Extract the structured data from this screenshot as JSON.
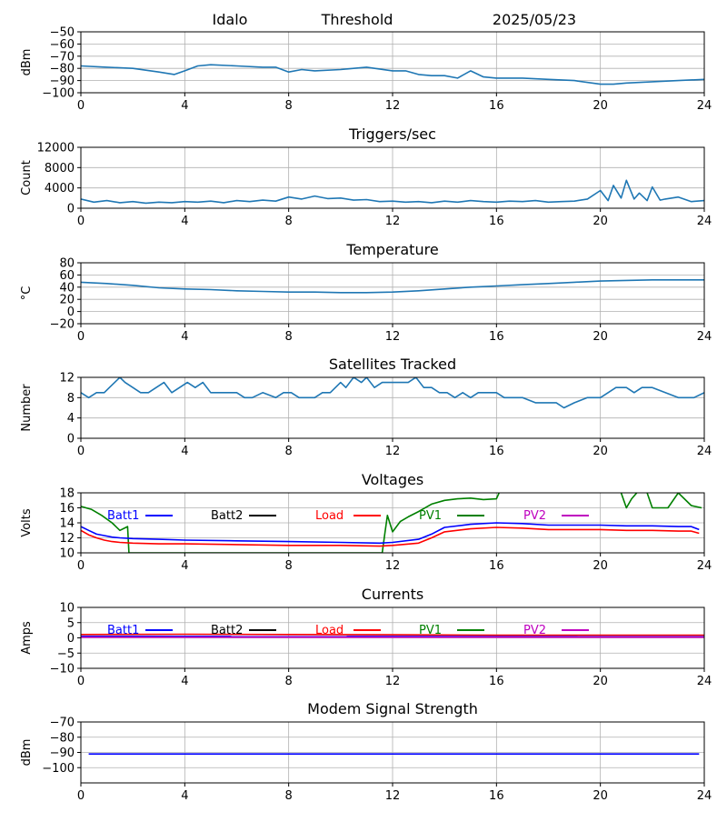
{
  "header": {
    "site": "Idalo",
    "type": "Threshold",
    "date": "2025/05/23"
  },
  "chart_data": [
    {
      "id": "threshold",
      "type": "line",
      "title": "",
      "ylabel": "dBm",
      "xlim": [
        0,
        24
      ],
      "ylim": [
        -100,
        -50
      ],
      "xticks": [
        0,
        4,
        8,
        12,
        16,
        20,
        24
      ],
      "yticks": [
        -100,
        -90,
        -80,
        -70,
        -60,
        -50
      ],
      "ytick_labels": [
        "−100",
        "−90",
        "−80",
        "−70",
        "−60",
        "−50"
      ],
      "grid": true,
      "series": [
        {
          "color": "#1f77b4",
          "x": [
            0,
            1,
            2,
            3,
            3.6,
            4,
            4.5,
            5,
            6,
            7,
            7.5,
            8,
            8.5,
            9,
            10,
            10.5,
            11,
            12,
            12.5,
            13,
            13.5,
            14,
            14.5,
            15,
            15.5,
            16,
            17,
            18,
            19,
            20,
            20.5,
            21,
            22,
            23,
            24
          ],
          "y": [
            -78,
            -79,
            -80,
            -83,
            -85,
            -82,
            -78,
            -77,
            -78,
            -79,
            -79,
            -83,
            -81,
            -82,
            -81,
            -80,
            -79,
            -82,
            -82,
            -85,
            -86,
            -86,
            -88,
            -82,
            -87,
            -88,
            -88,
            -89,
            -90,
            -93,
            -93,
            -92,
            -91,
            -90,
            -89
          ]
        }
      ]
    },
    {
      "id": "triggers",
      "type": "line",
      "title": "Triggers/sec",
      "ylabel": "Count",
      "xlim": [
        0,
        24
      ],
      "ylim": [
        0,
        12000
      ],
      "xticks": [
        0,
        4,
        8,
        12,
        16,
        20,
        24
      ],
      "yticks": [
        0,
        4000,
        8000,
        12000
      ],
      "ytick_labels": [
        "0",
        "4000",
        "8000",
        "12000"
      ],
      "grid": true,
      "series": [
        {
          "color": "#1f77b4",
          "x": [
            0,
            0.5,
            1,
            1.5,
            2,
            2.5,
            3,
            3.5,
            4,
            4.5,
            5,
            5.5,
            6,
            6.5,
            7,
            7.5,
            8,
            8.5,
            9,
            9.5,
            10,
            10.5,
            11,
            11.5,
            12,
            12.5,
            13,
            13.5,
            14,
            14.5,
            15,
            15.5,
            16,
            16.5,
            17,
            17.5,
            18,
            18.5,
            19,
            19.5,
            20,
            20.3,
            20.5,
            20.8,
            21,
            21.3,
            21.5,
            21.8,
            22,
            22.3,
            22.5,
            23,
            23.5,
            24
          ],
          "y": [
            1800,
            1200,
            1500,
            1100,
            1300,
            1000,
            1200,
            1100,
            1300,
            1200,
            1400,
            1100,
            1500,
            1300,
            1600,
            1400,
            2200,
            1800,
            2400,
            1900,
            2000,
            1600,
            1700,
            1300,
            1400,
            1200,
            1300,
            1100,
            1400,
            1200,
            1500,
            1300,
            1200,
            1400,
            1300,
            1500,
            1200,
            1300,
            1400,
            1800,
            3500,
            1500,
            4500,
            2000,
            5500,
            1800,
            3000,
            1500,
            4200,
            1600,
            1800,
            2200,
            1300,
            1500
          ]
        }
      ]
    },
    {
      "id": "temperature",
      "type": "line",
      "title": "Temperature",
      "ylabel": "°C",
      "xlim": [
        0,
        24
      ],
      "ylim": [
        -20,
        80
      ],
      "xticks": [
        0,
        4,
        8,
        12,
        16,
        20,
        24
      ],
      "yticks": [
        -20,
        0,
        20,
        40,
        60,
        80
      ],
      "ytick_labels": [
        "−20",
        "0",
        "20",
        "40",
        "60",
        "80"
      ],
      "grid": true,
      "series": [
        {
          "color": "#1f77b4",
          "x": [
            0,
            1,
            2,
            3,
            4,
            5,
            6,
            7,
            8,
            9,
            10,
            11,
            12,
            13,
            14,
            15,
            16,
            17,
            18,
            19,
            20,
            21,
            22,
            23,
            24
          ],
          "y": [
            48,
            46,
            43,
            39,
            37,
            36,
            34,
            33,
            32,
            32,
            31,
            31,
            32,
            34,
            37,
            40,
            42,
            44,
            46,
            48,
            50,
            51,
            52,
            52,
            52
          ]
        }
      ]
    },
    {
      "id": "satellites",
      "type": "line",
      "title": "Satellites Tracked",
      "ylabel": "Number",
      "xlim": [
        0,
        24
      ],
      "ylim": [
        0,
        12
      ],
      "xticks": [
        0,
        4,
        8,
        12,
        16,
        20,
        24
      ],
      "yticks": [
        0,
        4,
        8,
        12
      ],
      "ytick_labels": [
        "0",
        "4",
        "8",
        "12"
      ],
      "grid": true,
      "series": [
        {
          "color": "#1f77b4",
          "x": [
            0,
            0.3,
            0.6,
            0.9,
            1.1,
            1.3,
            1.5,
            1.7,
            2.0,
            2.3,
            2.6,
            2.9,
            3.2,
            3.5,
            3.8,
            4.1,
            4.4,
            4.7,
            5.0,
            5.5,
            6.0,
            6.3,
            6.6,
            7.0,
            7.5,
            7.8,
            8.1,
            8.4,
            8.7,
            9.0,
            9.3,
            9.6,
            10.0,
            10.2,
            10.5,
            10.8,
            11.0,
            11.3,
            11.6,
            12.0,
            12.3,
            12.6,
            12.9,
            13.2,
            13.5,
            13.8,
            14.1,
            14.4,
            14.7,
            15.0,
            15.3,
            15.6,
            16.0,
            16.3,
            16.6,
            17.0,
            17.5,
            18.0,
            18.3,
            18.6,
            19.0,
            19.5,
            20.0,
            20.3,
            20.6,
            21.0,
            21.3,
            21.6,
            22.0,
            22.5,
            23.0,
            23.3,
            23.6,
            24.0
          ],
          "y": [
            9,
            8,
            9,
            9,
            10,
            11,
            12,
            11,
            10,
            9,
            9,
            10,
            11,
            9,
            10,
            11,
            10,
            11,
            9,
            9,
            9,
            8,
            8,
            9,
            8,
            9,
            9,
            8,
            8,
            8,
            9,
            9,
            11,
            10,
            12,
            11,
            12,
            10,
            11,
            11,
            11,
            11,
            12,
            10,
            10,
            9,
            9,
            8,
            9,
            8,
            9,
            9,
            9,
            8,
            8,
            8,
            7,
            7,
            7,
            6,
            7,
            8,
            8,
            9,
            10,
            10,
            9,
            10,
            10,
            9,
            8,
            8,
            8,
            9
          ]
        }
      ]
    },
    {
      "id": "voltages",
      "type": "line",
      "title": "Voltages",
      "ylabel": "Volts",
      "xlim": [
        0,
        24
      ],
      "ylim": [
        10,
        18
      ],
      "xticks": [
        0,
        4,
        8,
        12,
        16,
        20,
        24
      ],
      "yticks": [
        10,
        12,
        14,
        16,
        18
      ],
      "ytick_labels": [
        "10",
        "12",
        "14",
        "16",
        "18"
      ],
      "grid": true,
      "legend": [
        "Batt1",
        "Batt2",
        "Load",
        "PV1",
        "PV2"
      ],
      "series": [
        {
          "name": "PV1",
          "color": "#008000",
          "x": [
            0,
            0.4,
            0.8,
            1.2,
            1.5,
            1.8,
            1.85,
            11.6,
            11.7,
            11.8,
            12.0,
            12.3,
            12.6,
            13.0,
            13.5,
            14.0,
            14.5,
            15.0,
            15.5,
            16.0,
            16.1
          ],
          "y": [
            16.2,
            15.8,
            15.0,
            14.0,
            13.0,
            13.5,
            10,
            10,
            12.5,
            15.0,
            12.8,
            14.2,
            14.8,
            15.5,
            16.5,
            17.0,
            17.2,
            17.3,
            17.1,
            17.2,
            18
          ]
        },
        {
          "name": "PV1",
          "color": "#008000",
          "x": [
            20.8,
            21.0,
            21.2,
            21.4
          ],
          "y": [
            18,
            16,
            17.2,
            18
          ]
        },
        {
          "name": "PV1",
          "color": "#008000",
          "x": [
            21.8,
            22.0,
            22.6,
            23.0,
            23.5,
            23.9
          ],
          "y": [
            18,
            16,
            16,
            18,
            16.3,
            16
          ]
        },
        {
          "name": "Batt1",
          "color": "#0000ff",
          "x": [
            0,
            0.3,
            0.6,
            0.9,
            1.2,
            1.5,
            2,
            3,
            4,
            6,
            8,
            10,
            11.5,
            12,
            13,
            13.5,
            14,
            15,
            16,
            17,
            18,
            19,
            20,
            21,
            22,
            23,
            23.5,
            23.8
          ],
          "y": [
            13.5,
            13.0,
            12.5,
            12.3,
            12.1,
            12.0,
            11.9,
            11.8,
            11.7,
            11.6,
            11.5,
            11.4,
            11.3,
            11.4,
            11.8,
            12.5,
            13.4,
            13.8,
            14.0,
            13.9,
            13.7,
            13.7,
            13.7,
            13.6,
            13.6,
            13.5,
            13.5,
            13.1
          ]
        },
        {
          "name": "Load",
          "color": "#ff0000",
          "x": [
            0,
            0.3,
            0.6,
            0.9,
            1.2,
            1.5,
            2,
            3,
            4,
            6,
            8,
            10,
            11.5,
            12,
            13,
            13.5,
            14,
            15,
            16,
            17,
            18,
            19,
            20,
            21,
            22,
            23,
            23.5,
            23.8
          ],
          "y": [
            13.0,
            12.4,
            12.0,
            11.7,
            11.5,
            11.4,
            11.3,
            11.2,
            11.2,
            11.1,
            11.0,
            11.0,
            10.9,
            11.0,
            11.3,
            12.0,
            12.8,
            13.2,
            13.4,
            13.3,
            13.1,
            13.1,
            13.1,
            13.0,
            13.0,
            12.9,
            12.9,
            12.6
          ]
        }
      ]
    },
    {
      "id": "currents",
      "type": "line",
      "title": "Currents",
      "ylabel": "Amps",
      "xlim": [
        0,
        24
      ],
      "ylim": [
        -10,
        10
      ],
      "xticks": [
        0,
        4,
        8,
        12,
        16,
        20,
        24
      ],
      "yticks": [
        -10,
        -5,
        0,
        5,
        10
      ],
      "ytick_labels": [
        "−10",
        "−5",
        "0",
        "5",
        "10"
      ],
      "grid": true,
      "legend": [
        "Batt1",
        "Batt2",
        "Load",
        "PV1",
        "PV2"
      ],
      "series": [
        {
          "name": "Batt1",
          "color": "#0000ff",
          "x": [
            0,
            24
          ],
          "y": [
            0.5,
            0.4
          ]
        },
        {
          "name": "PV2",
          "color": "#bf00bf",
          "x": [
            0,
            24
          ],
          "y": [
            0.2,
            0.2
          ]
        },
        {
          "name": "Load",
          "color": "#ff0000",
          "x": [
            0,
            4,
            8,
            12,
            16,
            20,
            24
          ],
          "y": [
            1.1,
            1.2,
            1.1,
            1.0,
            0.9,
            0.9,
            0.9
          ]
        }
      ]
    },
    {
      "id": "modem",
      "type": "line",
      "title": "Modem Signal Strength",
      "ylabel": "dBm",
      "xlim": [
        0,
        24
      ],
      "ylim": [
        -110,
        -70
      ],
      "xticks": [
        0,
        4,
        8,
        12,
        16,
        20,
        24
      ],
      "yticks": [
        -100,
        -90,
        -80,
        -70
      ],
      "ytick_labels": [
        "−100",
        "−90",
        "−80",
        "−70"
      ],
      "grid": true,
      "series": [
        {
          "color": "#0000ff",
          "x": [
            0.3,
            23.8
          ],
          "y": [
            -91,
            -91
          ]
        }
      ]
    }
  ],
  "legend_colors": {
    "Batt1": "#0000ff",
    "Batt2": "#000000",
    "Load": "#ff0000",
    "PV1": "#008000",
    "PV2": "#bf00bf"
  }
}
